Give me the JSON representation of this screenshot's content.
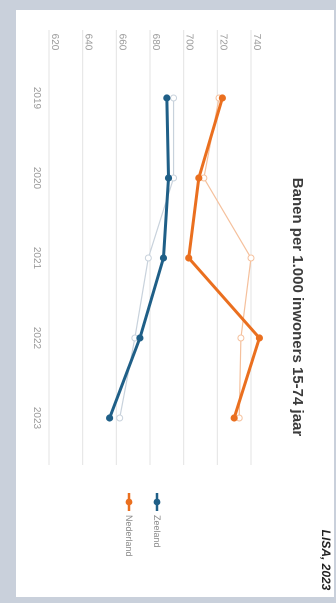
{
  "chart_data": {
    "type": "line",
    "title": "Banen per 1.000 inwoners 15-74 jaar",
    "x": [
      "2019",
      "2020",
      "2021",
      "2022",
      "2023"
    ],
    "series": [
      {
        "name": "Zeeland",
        "color": "#1f5f87",
        "values": [
          690,
          691,
          688,
          674,
          656
        ],
        "ghost_values": [
          694,
          694,
          679,
          671,
          662
        ]
      },
      {
        "name": "Nederland",
        "color": "#ea6f1f",
        "values": [
          723,
          709,
          703,
          745,
          730
        ],
        "ghost_values": [
          721,
          712,
          740,
          734,
          733
        ]
      }
    ],
    "yticks": [
      620,
      640,
      660,
      680,
      700,
      720,
      740
    ],
    "ylim": [
      620,
      740
    ],
    "grid": true,
    "legend_position": "bottom",
    "source": "LISA, 2023",
    "ghost_color": "#c8d2dc",
    "ghost_accent_color": "#f5c09c"
  }
}
